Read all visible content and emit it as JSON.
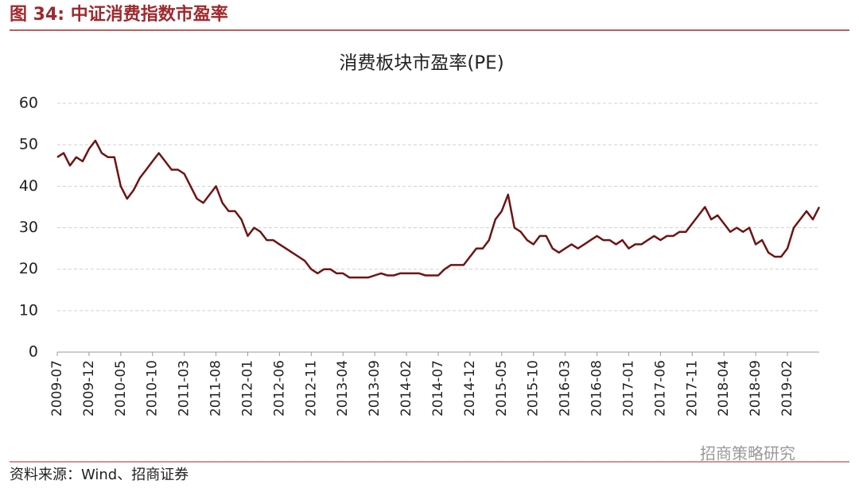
{
  "header": {
    "title": "图 34:  中证消费指数市盈率"
  },
  "source": "资料来源：Wind、招商证券",
  "watermark": "招商策略研究",
  "chart_data": {
    "type": "line",
    "title": "消费板块市盈率(PE)",
    "categories": [
      "2009-07",
      null,
      null,
      null,
      null,
      "2009-12",
      null,
      null,
      null,
      null,
      "2010-05",
      null,
      null,
      null,
      null,
      "2010-10",
      null,
      null,
      null,
      null,
      "2011-03",
      null,
      null,
      null,
      null,
      "2011-08",
      null,
      null,
      null,
      null,
      "2012-01",
      null,
      null,
      null,
      null,
      "2012-06",
      null,
      null,
      null,
      null,
      "2012-11",
      null,
      null,
      null,
      null,
      "2013-04",
      null,
      null,
      null,
      null,
      "2013-09",
      null,
      null,
      null,
      null,
      "2014-02",
      null,
      null,
      null,
      null,
      "2014-07",
      null,
      null,
      null,
      null,
      "2014-12",
      null,
      null,
      null,
      null,
      "2015-05",
      null,
      null,
      null,
      null,
      "2015-10",
      null,
      null,
      null,
      null,
      "2016-03",
      null,
      null,
      null,
      null,
      "2016-08",
      null,
      null,
      null,
      null,
      "2017-01",
      null,
      null,
      null,
      null,
      "2017-06",
      null,
      null,
      null,
      null,
      "2017-11",
      null,
      null,
      null,
      null,
      "2018-04",
      null,
      null,
      null,
      null,
      "2018-09",
      null,
      null,
      null,
      null,
      "2019-02",
      null,
      null,
      null,
      null,
      null
    ],
    "series": [
      {
        "color": "#6e1414",
        "values": [
          47,
          48,
          45,
          47,
          46,
          49,
          51,
          48,
          47,
          47,
          40,
          37,
          39,
          42,
          44,
          46,
          48,
          46,
          44,
          44,
          43,
          40,
          37,
          36,
          38,
          40,
          36,
          34,
          34,
          32,
          28,
          30,
          29,
          27,
          27,
          26,
          25,
          24,
          23,
          22,
          20,
          19,
          20,
          20,
          19,
          19,
          18,
          18,
          18,
          18,
          18.5,
          19,
          18.5,
          18.5,
          19,
          19,
          19,
          19,
          18.5,
          18.5,
          18.5,
          20,
          21,
          21,
          21,
          23,
          25,
          25,
          27,
          32,
          34,
          38,
          30,
          29,
          27,
          26,
          28,
          28,
          25,
          24,
          25,
          26,
          25,
          26,
          27,
          28,
          27,
          27,
          26,
          27,
          25,
          26,
          26,
          27,
          28,
          27,
          28,
          28,
          29,
          29,
          31,
          33,
          35,
          32,
          33,
          31,
          29,
          30,
          29,
          30,
          26,
          27,
          24,
          23,
          23,
          25,
          30,
          32,
          34,
          32,
          35
        ]
      }
    ],
    "ylim": [
      0,
      60
    ],
    "yticks": [
      0,
      10,
      20,
      30,
      40,
      50,
      60
    ],
    "grid": true
  }
}
